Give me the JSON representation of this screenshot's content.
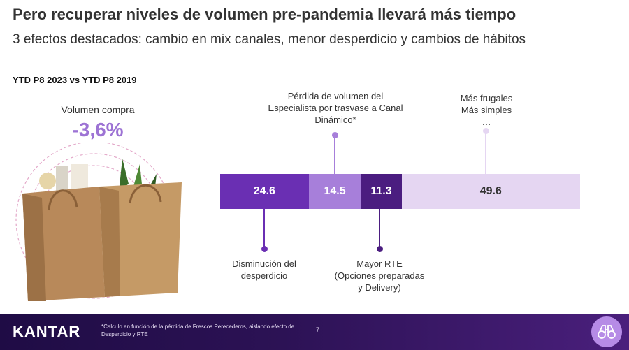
{
  "title": "Pero recuperar niveles de volumen pre-pandemia llevará más tiempo",
  "subtitle": "3 efectos destacados: cambio en mix canales, menor desperdicio y cambios de hábitos",
  "period": "YTD P8 2023 vs YTD P8 2019",
  "volume": {
    "label": "Volumen compra",
    "value": "-3,6%"
  },
  "colors": {
    "dark_purple": "#6a2fb3",
    "mid_purple": "#a77fda",
    "deep_purple": "#4b1d80",
    "light_purple": "#e5d6f2",
    "accent": "#9d73d4"
  },
  "chart_data": {
    "type": "bar",
    "orientation": "horizontal-stacked",
    "series": [
      {
        "name": "Disminución del desperdicio",
        "value": 24.6,
        "label": "24.6"
      },
      {
        "name": "Pérdida de volumen del Especialista por trasvase a Canal Dinámico*",
        "value": 14.5,
        "label": "14.5"
      },
      {
        "name": "Mayor RTE (Opciones preparadas y Delivery)",
        "value": 11.3,
        "label": "11.3"
      },
      {
        "name": "Más frugales / Más simples",
        "value": 49.6,
        "label": "49.6"
      }
    ]
  },
  "annotations": {
    "top1": [
      "Pérdida de volumen del",
      "Especialista por trasvase a Canal",
      "Dinámico*"
    ],
    "top2": [
      "Más frugales",
      "Más simples",
      "…"
    ],
    "bottom1": [
      "Disminución del",
      "desperdicio"
    ],
    "bottom2": [
      "Mayor RTE",
      "(Opciones preparadas",
      "y Delivery)"
    ]
  },
  "footer": {
    "logo": "KANTAR",
    "footnote": "*Calculo en función de la pérdida de Frescos Perecederos, aislando efecto de Desperdicio y RTE",
    "page": "7"
  }
}
